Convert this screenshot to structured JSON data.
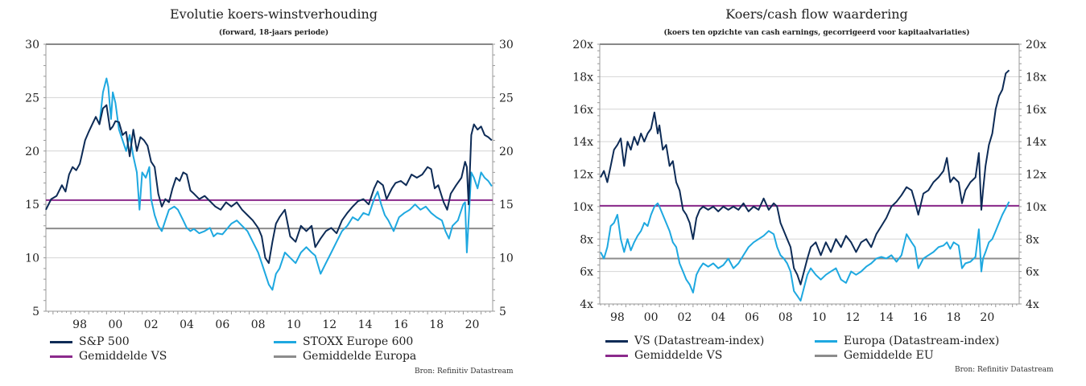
{
  "chart_data": [
    {
      "type": "line",
      "title": "Evolutie koers-winstverhouding",
      "subtitle": "(forward, 18-jaars periode)",
      "xlabel": "",
      "ylabel": "",
      "xlim": [
        1996.6,
        2021.65
      ],
      "ylim": [
        5,
        30
      ],
      "yticks": [
        5,
        10,
        15,
        20,
        25,
        30
      ],
      "ytick_labels": [
        "5",
        "10",
        "15",
        "20",
        "25",
        "30"
      ],
      "xticks": [
        1998,
        2000,
        2002,
        2004,
        2006,
        2008,
        2010,
        2012,
        2014,
        2016,
        2018,
        2020
      ],
      "xtick_labels": [
        "98",
        "00",
        "02",
        "04",
        "06",
        "08",
        "10",
        "12",
        "14",
        "16",
        "18",
        "20"
      ],
      "grid": true,
      "legend_position": "bottom",
      "source": "Bron: Refinitiv Datastream",
      "series": [
        {
          "name": "S&P 500",
          "color": "#0d2b56",
          "kind": "series",
          "x": [
            1996.6,
            1996.9,
            1997.2,
            1997.5,
            1997.7,
            1997.9,
            1998.1,
            1998.3,
            1998.5,
            1998.6,
            1998.8,
            1999.0,
            1999.2,
            1999.4,
            1999.6,
            1999.8,
            2000.0,
            2000.2,
            2000.35,
            2000.5,
            2000.7,
            2000.9,
            2001.1,
            2001.3,
            2001.5,
            2001.7,
            2001.9,
            2002.1,
            2002.3,
            2002.5,
            2002.7,
            2002.9,
            2003.1,
            2003.3,
            2003.5,
            2003.7,
            2003.9,
            2004.1,
            2004.3,
            2004.5,
            2004.7,
            2004.9,
            2005.2,
            2005.5,
            2005.8,
            2006.1,
            2006.4,
            2006.7,
            2007.0,
            2007.3,
            2007.6,
            2007.9,
            2008.2,
            2008.5,
            2008.7,
            2008.9,
            2009.1,
            2009.3,
            2009.5,
            2009.7,
            2010.0,
            2010.3,
            2010.6,
            2010.9,
            2011.2,
            2011.5,
            2011.7,
            2012.0,
            2012.3,
            2012.6,
            2012.9,
            2013.2,
            2013.5,
            2013.8,
            2014.1,
            2014.4,
            2014.7,
            2015.0,
            2015.2,
            2015.5,
            2015.7,
            2016.0,
            2016.2,
            2016.5,
            2016.8,
            2017.1,
            2017.4,
            2017.7,
            2018.0,
            2018.2,
            2018.4,
            2018.6,
            2018.9,
            2019.1,
            2019.3,
            2019.6,
            2019.9,
            2020.1,
            2020.2,
            2020.3,
            2020.45,
            2020.6,
            2020.8,
            2021.0,
            2021.2,
            2021.4,
            2021.6
          ],
          "y": [
            14.5,
            15.5,
            15.8,
            16.8,
            16.2,
            17.8,
            18.5,
            18.2,
            18.8,
            19.5,
            21.0,
            21.8,
            22.5,
            23.2,
            22.5,
            24.0,
            24.3,
            22.0,
            22.3,
            22.8,
            22.7,
            21.5,
            21.8,
            19.5,
            22.0,
            20.0,
            21.3,
            21.0,
            20.5,
            19.0,
            18.5,
            16.0,
            14.8,
            15.5,
            15.2,
            16.5,
            17.5,
            17.2,
            18.0,
            17.8,
            16.3,
            16.0,
            15.5,
            15.8,
            15.3,
            14.8,
            14.5,
            15.2,
            14.8,
            15.2,
            14.5,
            14.0,
            13.5,
            12.8,
            12.0,
            10.0,
            9.5,
            11.5,
            13.2,
            13.8,
            14.5,
            12.0,
            11.5,
            13.0,
            12.5,
            13.0,
            11.0,
            11.8,
            12.5,
            12.8,
            12.3,
            13.5,
            14.2,
            14.8,
            15.3,
            15.5,
            15.0,
            16.5,
            17.2,
            16.8,
            15.5,
            16.5,
            17.0,
            17.2,
            16.8,
            17.8,
            17.5,
            17.8,
            18.5,
            18.3,
            16.5,
            16.8,
            15.2,
            14.5,
            16.0,
            16.8,
            17.5,
            19.0,
            18.5,
            15.0,
            21.5,
            22.5,
            22.0,
            22.3,
            21.5,
            21.3,
            21.0
          ]
        },
        {
          "name": "STOXX Europe 600",
          "color": "#1ea8e0",
          "kind": "series",
          "x": [
            1999.6,
            1999.8,
            2000.0,
            2000.1,
            2000.25,
            2000.35,
            2000.5,
            2000.7,
            2000.9,
            2001.1,
            2001.3,
            2001.5,
            2001.7,
            2001.85,
            2002.0,
            2002.2,
            2002.4,
            2002.5,
            2002.7,
            2002.9,
            2003.1,
            2003.3,
            2003.5,
            2003.8,
            2004.0,
            2004.3,
            2004.5,
            2004.7,
            2004.9,
            2005.2,
            2005.5,
            2005.8,
            2006.0,
            2006.2,
            2006.5,
            2006.8,
            2007.0,
            2007.3,
            2007.6,
            2007.9,
            2008.2,
            2008.5,
            2008.7,
            2008.9,
            2009.1,
            2009.3,
            2009.5,
            2009.7,
            2010.0,
            2010.3,
            2010.6,
            2010.9,
            2011.2,
            2011.5,
            2011.7,
            2012.0,
            2012.3,
            2012.6,
            2012.9,
            2013.2,
            2013.5,
            2013.8,
            2014.1,
            2014.4,
            2014.7,
            2015.0,
            2015.2,
            2015.4,
            2015.6,
            2015.8,
            2016.1,
            2016.4,
            2016.7,
            2017.0,
            2017.3,
            2017.6,
            2017.9,
            2018.2,
            2018.5,
            2018.8,
            2019.0,
            2019.2,
            2019.4,
            2019.7,
            2020.0,
            2020.1,
            2020.2,
            2020.3,
            2020.45,
            2020.6,
            2020.8,
            2021.0,
            2021.2,
            2021.4,
            2021.6
          ],
          "y": [
            22.5,
            25.5,
            26.8,
            26.0,
            23.0,
            25.5,
            24.5,
            22.0,
            21.0,
            20.0,
            21.5,
            19.5,
            18.0,
            14.5,
            18.0,
            17.5,
            18.5,
            15.5,
            14.0,
            13.0,
            12.5,
            13.5,
            14.5,
            14.8,
            14.5,
            13.5,
            12.8,
            12.5,
            12.7,
            12.3,
            12.5,
            12.8,
            12.0,
            12.3,
            12.2,
            12.8,
            13.2,
            13.5,
            13.0,
            12.5,
            11.5,
            10.5,
            9.5,
            8.5,
            7.5,
            7.0,
            8.5,
            9.0,
            10.5,
            10.0,
            9.5,
            10.5,
            11.0,
            10.5,
            10.2,
            8.5,
            9.5,
            10.5,
            11.5,
            12.5,
            13.0,
            13.8,
            13.5,
            14.2,
            14.0,
            15.5,
            16.2,
            15.0,
            14.0,
            13.5,
            12.5,
            13.8,
            14.2,
            14.5,
            15.0,
            14.5,
            14.8,
            14.2,
            13.8,
            13.5,
            12.5,
            11.8,
            13.0,
            13.5,
            15.0,
            15.2,
            10.5,
            13.5,
            18.0,
            17.5,
            16.5,
            18.0,
            17.5,
            17.2,
            16.7
          ]
        },
        {
          "name": "Gemiddelde VS",
          "color": "#8b2a8c",
          "kind": "hline",
          "value": 15.4
        },
        {
          "name": "Gemiddelde Europa",
          "color": "#8c8c8c",
          "kind": "hline",
          "value": 12.75
        }
      ]
    },
    {
      "type": "line",
      "title": "Koers/cash flow waardering",
      "subtitle": "(koers ten opzichte van cash earnings, gecorrigeerd voor kapitaalvariaties)",
      "xlabel": "",
      "ylabel": "",
      "xlim": [
        1997.45,
        2022.4
      ],
      "ylim": [
        4,
        20
      ],
      "yticks": [
        4,
        6,
        8,
        10,
        12,
        14,
        16,
        18,
        20
      ],
      "ytick_labels": [
        "4x",
        "6x",
        "8x",
        "10x",
        "12x",
        "14x",
        "16x",
        "18x",
        "20x"
      ],
      "xticks": [
        1998,
        2000,
        2002,
        2004,
        2006,
        2008,
        2010,
        2012,
        2014,
        2016,
        2018,
        2020
      ],
      "xtick_labels": [
        "98",
        "00",
        "02",
        "04",
        "06",
        "08",
        "10",
        "12",
        "14",
        "16",
        "18",
        "20"
      ],
      "grid": true,
      "legend_position": "bottom",
      "source": "Bron: Refinitiv Datastream",
      "series": [
        {
          "name": "VS (Datastream-index)",
          "color": "#0d2b56",
          "kind": "series",
          "x": [
            1997.5,
            1997.7,
            1997.9,
            1998.1,
            1998.3,
            1998.5,
            1998.7,
            1998.9,
            1999.1,
            1999.3,
            1999.5,
            1999.7,
            1999.9,
            2000.1,
            2000.3,
            2000.5,
            2000.7,
            2000.9,
            2001.0,
            2001.2,
            2001.4,
            2001.6,
            2001.8,
            2002.0,
            2002.2,
            2002.4,
            2002.6,
            2002.8,
            2003.0,
            2003.2,
            2003.4,
            2003.6,
            2003.9,
            2004.2,
            2004.5,
            2004.8,
            2005.1,
            2005.4,
            2005.7,
            2006.0,
            2006.3,
            2006.6,
            2006.9,
            2007.2,
            2007.5,
            2007.8,
            2008.0,
            2008.2,
            2008.4,
            2008.6,
            2008.8,
            2009.0,
            2009.2,
            2009.4,
            2009.6,
            2009.8,
            2010.0,
            2010.3,
            2010.6,
            2010.9,
            2011.2,
            2011.5,
            2011.8,
            2012.1,
            2012.4,
            2012.7,
            2013.0,
            2013.3,
            2013.6,
            2013.9,
            2014.2,
            2014.5,
            2014.8,
            2015.1,
            2015.4,
            2015.7,
            2016.0,
            2016.2,
            2016.4,
            2016.7,
            2017.0,
            2017.3,
            2017.6,
            2017.9,
            2018.1,
            2018.3,
            2018.5,
            2018.8,
            2019.0,
            2019.2,
            2019.5,
            2019.8,
            2020.0,
            2020.15,
            2020.25,
            2020.4,
            2020.6,
            2020.8,
            2021.0,
            2021.2,
            2021.4,
            2021.6,
            2021.8
          ],
          "y": [
            11.8,
            12.2,
            11.5,
            12.5,
            13.5,
            13.8,
            14.2,
            12.5,
            14.0,
            13.5,
            14.3,
            13.8,
            14.5,
            14.0,
            14.5,
            14.8,
            15.8,
            14.5,
            15.0,
            13.5,
            13.8,
            12.5,
            12.8,
            11.5,
            11.0,
            9.8,
            9.5,
            9.0,
            8.0,
            9.3,
            9.8,
            10.0,
            9.8,
            10.0,
            9.7,
            10.0,
            9.8,
            10.0,
            9.8,
            10.2,
            9.7,
            10.0,
            9.8,
            10.5,
            9.8,
            10.2,
            10.0,
            9.0,
            8.5,
            8.0,
            7.5,
            6.2,
            5.8,
            5.2,
            6.0,
            6.8,
            7.5,
            7.8,
            7.0,
            7.8,
            7.2,
            8.0,
            7.5,
            8.2,
            7.8,
            7.2,
            7.8,
            8.0,
            7.5,
            8.3,
            8.8,
            9.3,
            10.0,
            10.3,
            10.7,
            11.2,
            11.0,
            10.3,
            9.5,
            10.8,
            11.0,
            11.5,
            11.8,
            12.2,
            13.0,
            11.5,
            11.8,
            11.5,
            10.2,
            11.0,
            11.5,
            11.8,
            13.3,
            9.8,
            11.0,
            12.5,
            13.8,
            14.5,
            16.0,
            16.8,
            17.2,
            18.2,
            18.4
          ]
        },
        {
          "name": "Europa (Datastream-index)",
          "color": "#1ea8e0",
          "kind": "series",
          "x": [
            1997.5,
            1997.7,
            1997.9,
            1998.1,
            1998.3,
            1998.5,
            1998.7,
            1998.9,
            1999.1,
            1999.3,
            1999.5,
            1999.7,
            1999.9,
            2000.1,
            2000.3,
            2000.5,
            2000.7,
            2000.9,
            2001.0,
            2001.2,
            2001.4,
            2001.6,
            2001.8,
            2002.0,
            2002.2,
            2002.4,
            2002.6,
            2002.8,
            2003.0,
            2003.2,
            2003.4,
            2003.6,
            2003.9,
            2004.2,
            2004.5,
            2004.8,
            2005.1,
            2005.4,
            2005.7,
            2006.0,
            2006.3,
            2006.6,
            2006.9,
            2007.2,
            2007.5,
            2007.8,
            2008.0,
            2008.2,
            2008.4,
            2008.6,
            2008.8,
            2009.0,
            2009.2,
            2009.4,
            2009.6,
            2009.8,
            2010.0,
            2010.3,
            2010.6,
            2010.9,
            2011.2,
            2011.5,
            2011.8,
            2012.1,
            2012.4,
            2012.7,
            2013.0,
            2013.3,
            2013.6,
            2013.9,
            2014.2,
            2014.5,
            2014.8,
            2015.1,
            2015.4,
            2015.7,
            2016.0,
            2016.2,
            2016.4,
            2016.7,
            2017.0,
            2017.3,
            2017.6,
            2017.9,
            2018.1,
            2018.3,
            2018.5,
            2018.8,
            2019.0,
            2019.2,
            2019.5,
            2019.8,
            2020.0,
            2020.15,
            2020.25,
            2020.4,
            2020.6,
            2020.8,
            2021.0,
            2021.2,
            2021.4,
            2021.6,
            2021.8
          ],
          "y": [
            7.2,
            6.8,
            7.5,
            8.8,
            9.0,
            9.5,
            8.0,
            7.2,
            8.0,
            7.3,
            7.8,
            8.2,
            8.5,
            9.0,
            8.8,
            9.5,
            10.0,
            10.2,
            10.0,
            9.5,
            9.0,
            8.5,
            7.8,
            7.5,
            6.5,
            6.0,
            5.5,
            5.2,
            4.7,
            5.8,
            6.2,
            6.5,
            6.3,
            6.5,
            6.2,
            6.4,
            6.8,
            6.2,
            6.5,
            7.0,
            7.5,
            7.8,
            8.0,
            8.2,
            8.5,
            8.3,
            7.5,
            7.0,
            6.8,
            6.5,
            6.0,
            4.8,
            4.5,
            4.2,
            5.0,
            5.8,
            6.2,
            5.8,
            5.5,
            5.8,
            6.0,
            6.2,
            5.5,
            5.3,
            6.0,
            5.8,
            6.0,
            6.3,
            6.5,
            6.8,
            6.9,
            6.8,
            7.0,
            6.6,
            7.0,
            8.3,
            7.8,
            7.5,
            6.2,
            6.8,
            7.0,
            7.2,
            7.5,
            7.6,
            7.8,
            7.4,
            7.8,
            7.6,
            6.2,
            6.5,
            6.6,
            6.9,
            8.6,
            6.0,
            6.8,
            7.2,
            7.8,
            8.0,
            8.5,
            9.0,
            9.5,
            9.9,
            10.3
          ]
        },
        {
          "name": "Gemiddelde VS",
          "color": "#8b2a8c",
          "kind": "hline",
          "value": 10.05
        },
        {
          "name": "Gemiddelde EU",
          "color": "#8c8c8c",
          "kind": "hline",
          "value": 6.8
        }
      ]
    }
  ]
}
